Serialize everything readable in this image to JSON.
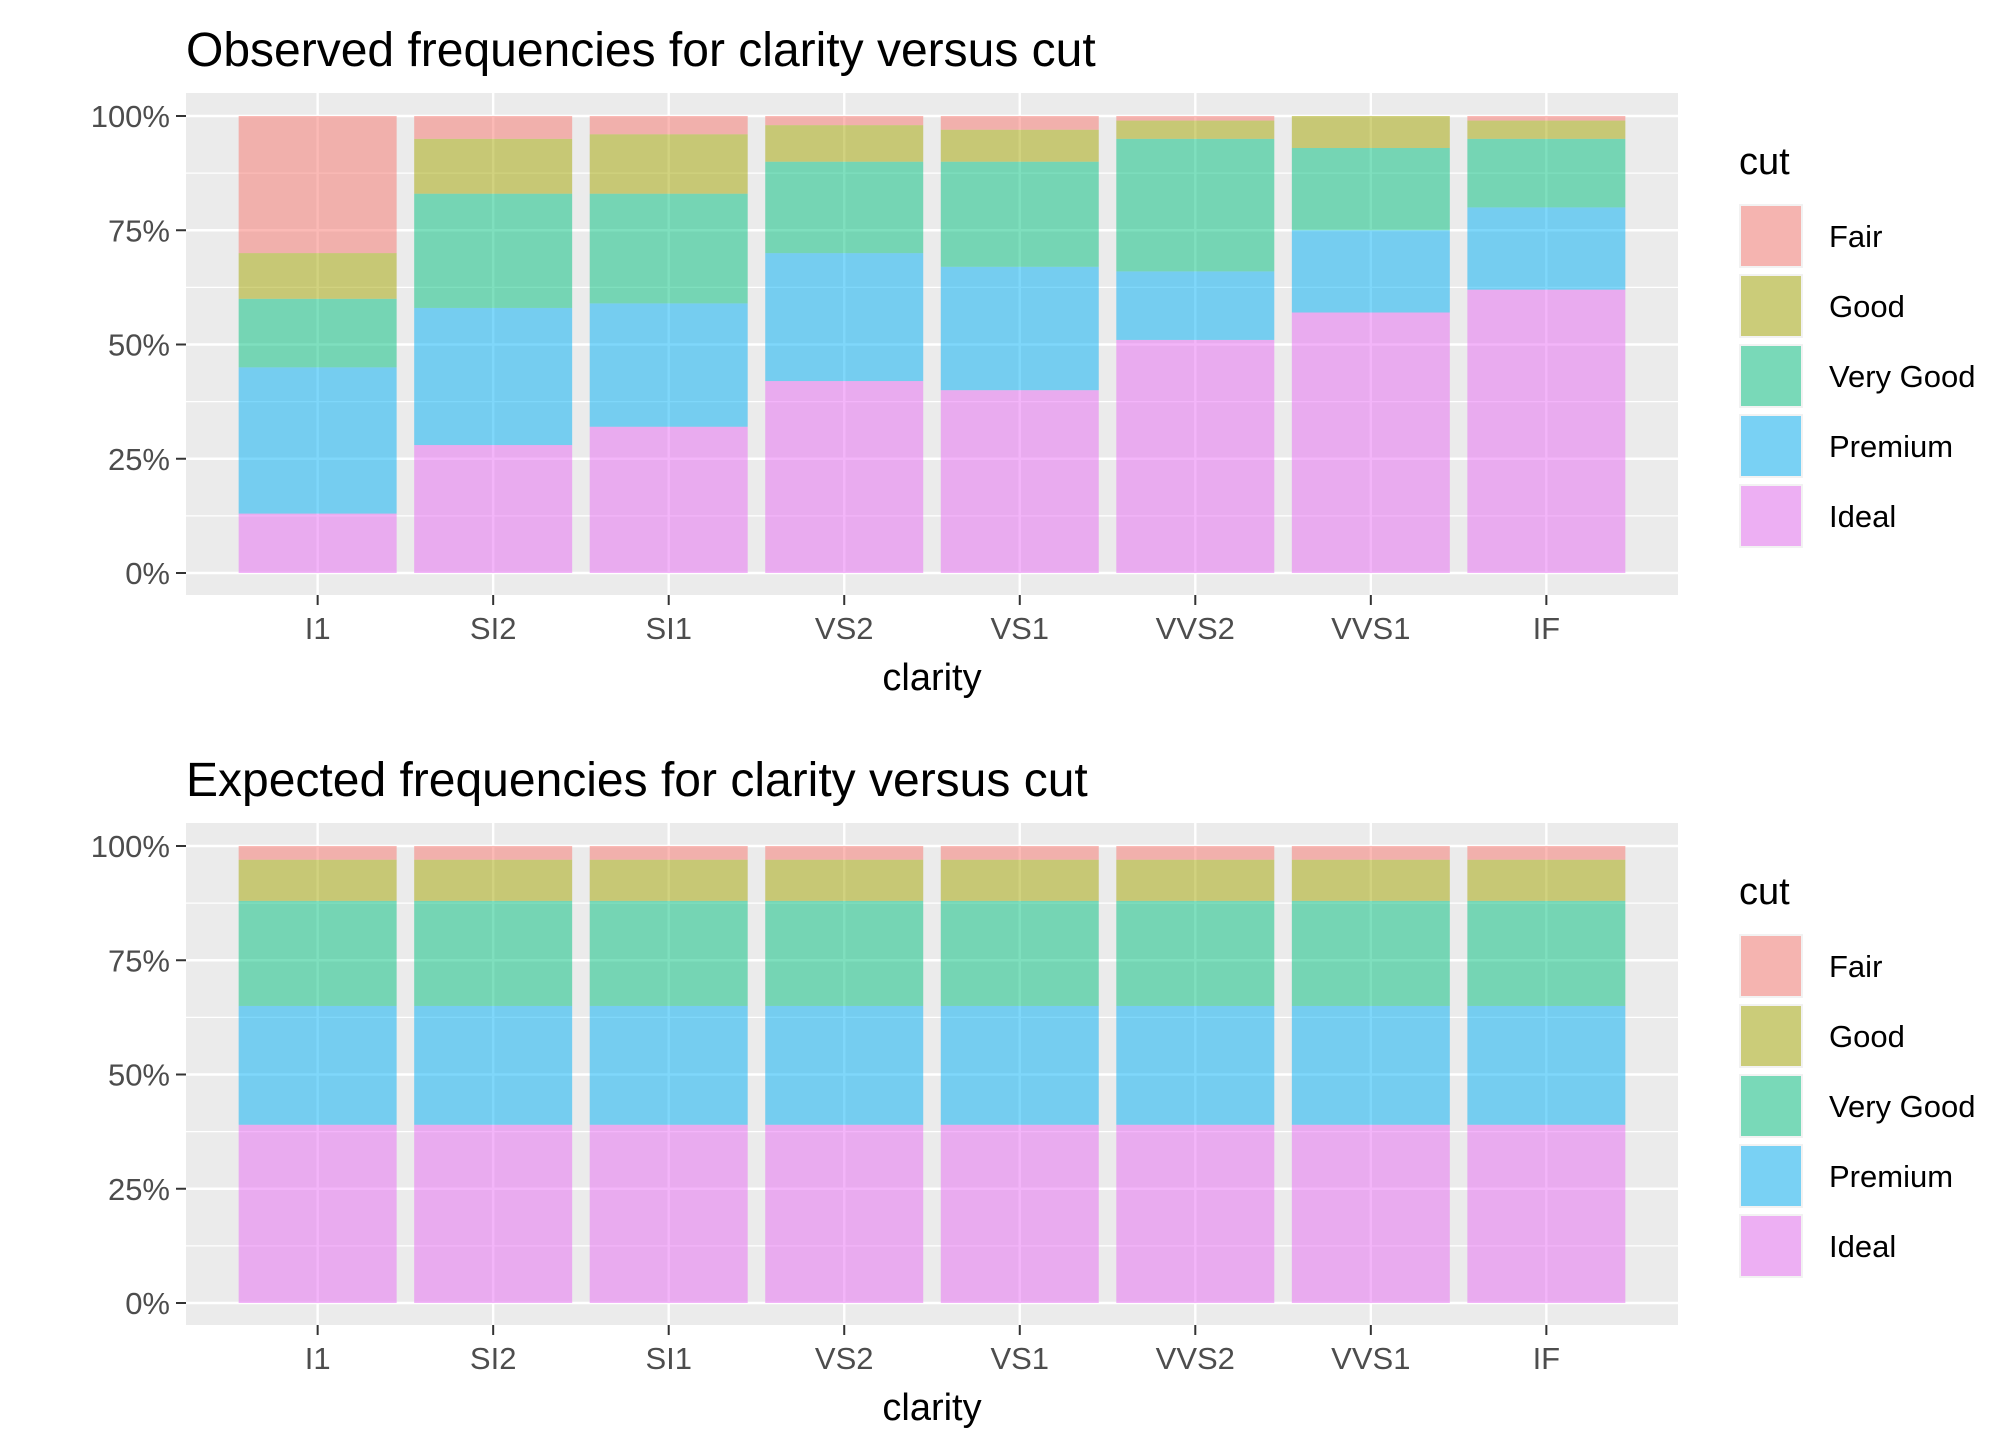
{
  "chart_data": [
    {
      "type": "bar",
      "stacked": "percent",
      "title": "Observed frequencies for clarity versus cut",
      "xlabel": "clarity",
      "ylabel": "",
      "categories": [
        "I1",
        "SI2",
        "SI1",
        "VS2",
        "VS1",
        "VVS2",
        "VVS1",
        "IF"
      ],
      "ylim": [
        0,
        1
      ],
      "yticks": [
        "0%",
        "25%",
        "50%",
        "75%",
        "100%"
      ],
      "grid": true,
      "legend": {
        "title": "cut",
        "position": "right"
      },
      "series": [
        {
          "name": "Fair",
          "color": "#F8766D",
          "values": [
            0.3,
            0.05,
            0.04,
            0.02,
            0.03,
            0.01,
            0.0,
            0.01
          ]
        },
        {
          "name": "Good",
          "color": "#A3A500",
          "values": [
            0.1,
            0.12,
            0.13,
            0.08,
            0.07,
            0.04,
            0.07,
            0.04
          ]
        },
        {
          "name": "Very Good",
          "color": "#00BF7D",
          "values": [
            0.15,
            0.25,
            0.24,
            0.2,
            0.23,
            0.29,
            0.18,
            0.15
          ]
        },
        {
          "name": "Premium",
          "color": "#00B0F6",
          "values": [
            0.32,
            0.3,
            0.27,
            0.28,
            0.27,
            0.15,
            0.18,
            0.18
          ]
        },
        {
          "name": "Ideal",
          "color": "#E76BF3",
          "values": [
            0.13,
            0.28,
            0.32,
            0.42,
            0.4,
            0.51,
            0.57,
            0.62
          ]
        }
      ]
    },
    {
      "type": "bar",
      "stacked": "percent",
      "title": "Expected frequencies for clarity versus cut",
      "xlabel": "clarity",
      "ylabel": "",
      "categories": [
        "I1",
        "SI2",
        "SI1",
        "VS2",
        "VS1",
        "VVS2",
        "VVS1",
        "IF"
      ],
      "ylim": [
        0,
        1
      ],
      "yticks": [
        "0%",
        "25%",
        "50%",
        "75%",
        "100%"
      ],
      "grid": true,
      "legend": {
        "title": "cut",
        "position": "right"
      },
      "series": [
        {
          "name": "Fair",
          "color": "#F8766D",
          "values": [
            0.03,
            0.03,
            0.03,
            0.03,
            0.03,
            0.03,
            0.03,
            0.03
          ]
        },
        {
          "name": "Good",
          "color": "#A3A500",
          "values": [
            0.09,
            0.09,
            0.09,
            0.09,
            0.09,
            0.09,
            0.09,
            0.09
          ]
        },
        {
          "name": "Very Good",
          "color": "#00BF7D",
          "values": [
            0.23,
            0.23,
            0.23,
            0.23,
            0.23,
            0.23,
            0.23,
            0.23
          ]
        },
        {
          "name": "Premium",
          "color": "#00B0F6",
          "values": [
            0.26,
            0.26,
            0.26,
            0.26,
            0.26,
            0.26,
            0.26,
            0.26
          ]
        },
        {
          "name": "Ideal",
          "color": "#E76BF3",
          "values": [
            0.39,
            0.39,
            0.39,
            0.39,
            0.39,
            0.39,
            0.39,
            0.39
          ]
        }
      ]
    }
  ],
  "colors": {
    "panel_background": "#EBEBEB",
    "grid": "#FFFFFF",
    "axis_text": "#4D4D4D",
    "title_text": "#000000"
  }
}
